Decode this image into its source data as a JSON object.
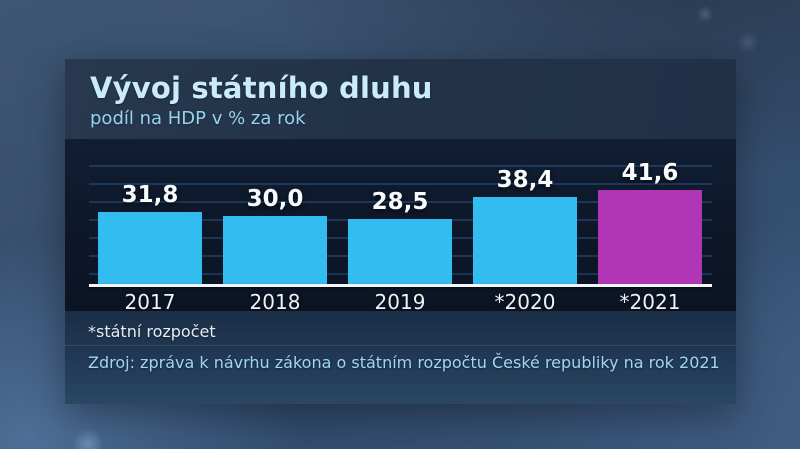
{
  "header": {
    "title": "Vývoj státního dluhu",
    "subtitle": "podíl na HDP v % za rok"
  },
  "chart_data": {
    "type": "bar",
    "title": "Vývoj státního dluhu",
    "subtitle": "podíl na HDP v % za rok",
    "categories": [
      "2017",
      "2018",
      "2019",
      "*2020",
      "*2021"
    ],
    "values": [
      31.8,
      30.0,
      28.5,
      38.4,
      41.6
    ],
    "value_labels": [
      "31,8",
      "30,0",
      "28,5",
      "38,4",
      "41,6"
    ],
    "bar_colors": [
      "#33bcf0",
      "#33bcf0",
      "#33bcf0",
      "#33bcf0",
      "#b136b5"
    ],
    "highlight_index": 4,
    "ylim": [
      0,
      45
    ],
    "grid": true,
    "legend_position": "none"
  },
  "footer": {
    "footnote": "*státní rozpočet",
    "source": "Zdroj: zpráva k návrhu zákona o státním rozpočtu České republiky na rok 2021"
  },
  "colors": {
    "bar_default": "#33bcf0",
    "bar_highlight": "#b136b5",
    "axis": "#f3f6f8",
    "title": "#c9ebfb",
    "subtitle": "#97d2ef",
    "source_text": "#a0d6f2",
    "header_bg": "#223349",
    "chart_bg": "#0d1728"
  }
}
